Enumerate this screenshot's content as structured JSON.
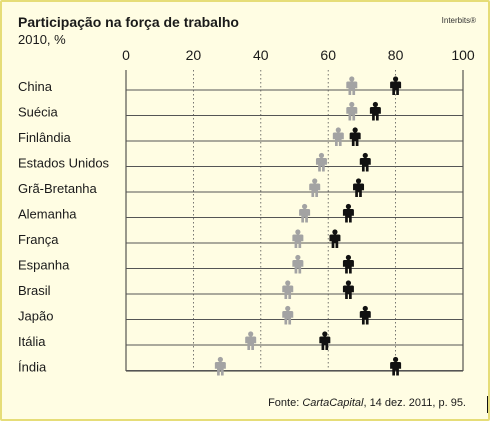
{
  "title": "Participação na força de trabalho",
  "subtitle": "2010, %",
  "credit": "Interbits®",
  "source": {
    "prefix": "Fonte: ",
    "publication": "CartaCapital",
    "suffix": ", 14 dez. 2011, p. 95."
  },
  "colors": {
    "background": "#fffde3",
    "border": "#e6dd78",
    "women": "#a3a3a3",
    "men": "#111111"
  },
  "icons": {
    "women": "person-icon",
    "men": "person-icon"
  },
  "chart_data": {
    "type": "scatter",
    "categories": [
      "China",
      "Suécia",
      "Finlândia",
      "Estados Unidos",
      "Grã-Bretanha",
      "Alemanha",
      "França",
      "Espanha",
      "Brasil",
      "Japão",
      "Itália",
      "Índia"
    ],
    "series": [
      {
        "values": [
          67,
          67,
          63,
          58,
          56,
          53,
          51,
          51,
          48,
          48,
          37,
          28
        ]
      },
      {
        "values": [
          80,
          74,
          68,
          71,
          69,
          66,
          62,
          66,
          66,
          71,
          59,
          80
        ]
      }
    ],
    "x_ticks": [
      0,
      20,
      40,
      60,
      80,
      100
    ],
    "xlim": [
      0,
      100
    ],
    "xlabel": "",
    "ylabel": "",
    "grid": "vertical-dotted"
  }
}
